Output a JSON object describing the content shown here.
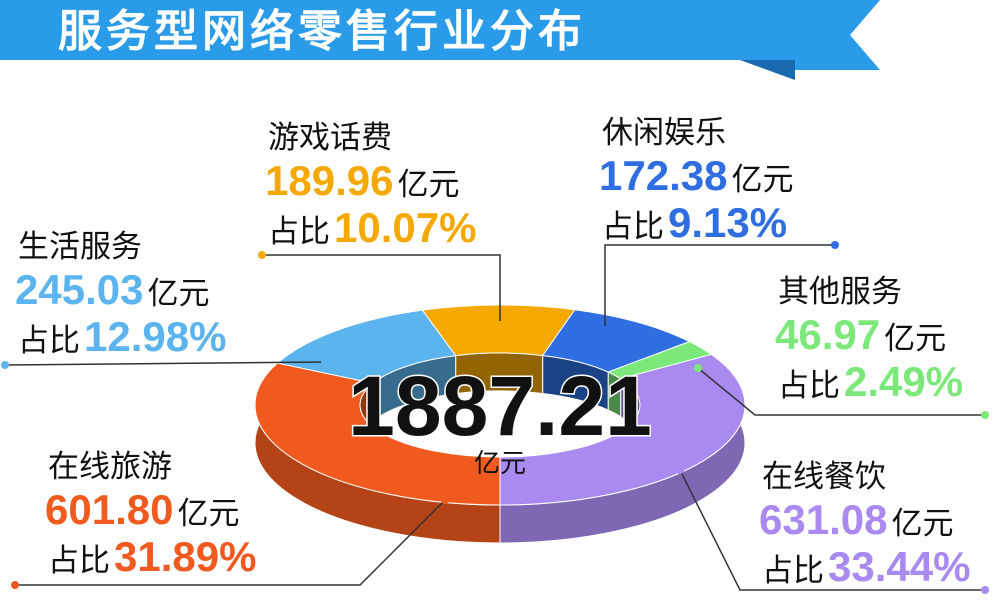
{
  "chart_data": {
    "type": "pie",
    "donut": true,
    "title": "服务型网络零售行业分布",
    "categories": [
      "游戏话费",
      "休闲娱乐",
      "其他服务",
      "在线餐饮",
      "在线旅游",
      "生活服务"
    ],
    "values": [
      189.96,
      172.38,
      46.97,
      631.08,
      601.8,
      245.03
    ],
    "value_labels": [
      "189.96",
      "172.38",
      "46.97",
      "631.08",
      "601.80",
      "245.03"
    ],
    "shares": [
      10.07,
      9.13,
      2.49,
      33.44,
      31.89,
      12.98
    ],
    "share_labels": [
      "10.07%",
      "9.13%",
      "2.49%",
      "33.44%",
      "31.89%",
      "12.98%"
    ],
    "colors": [
      "#f5a800",
      "#2f6ee0",
      "#7de87a",
      "#a88af0",
      "#f05a1e",
      "#5bb4ee"
    ],
    "unit": "亿元",
    "share_prefix": "占比",
    "total": 1887.21
  }
}
